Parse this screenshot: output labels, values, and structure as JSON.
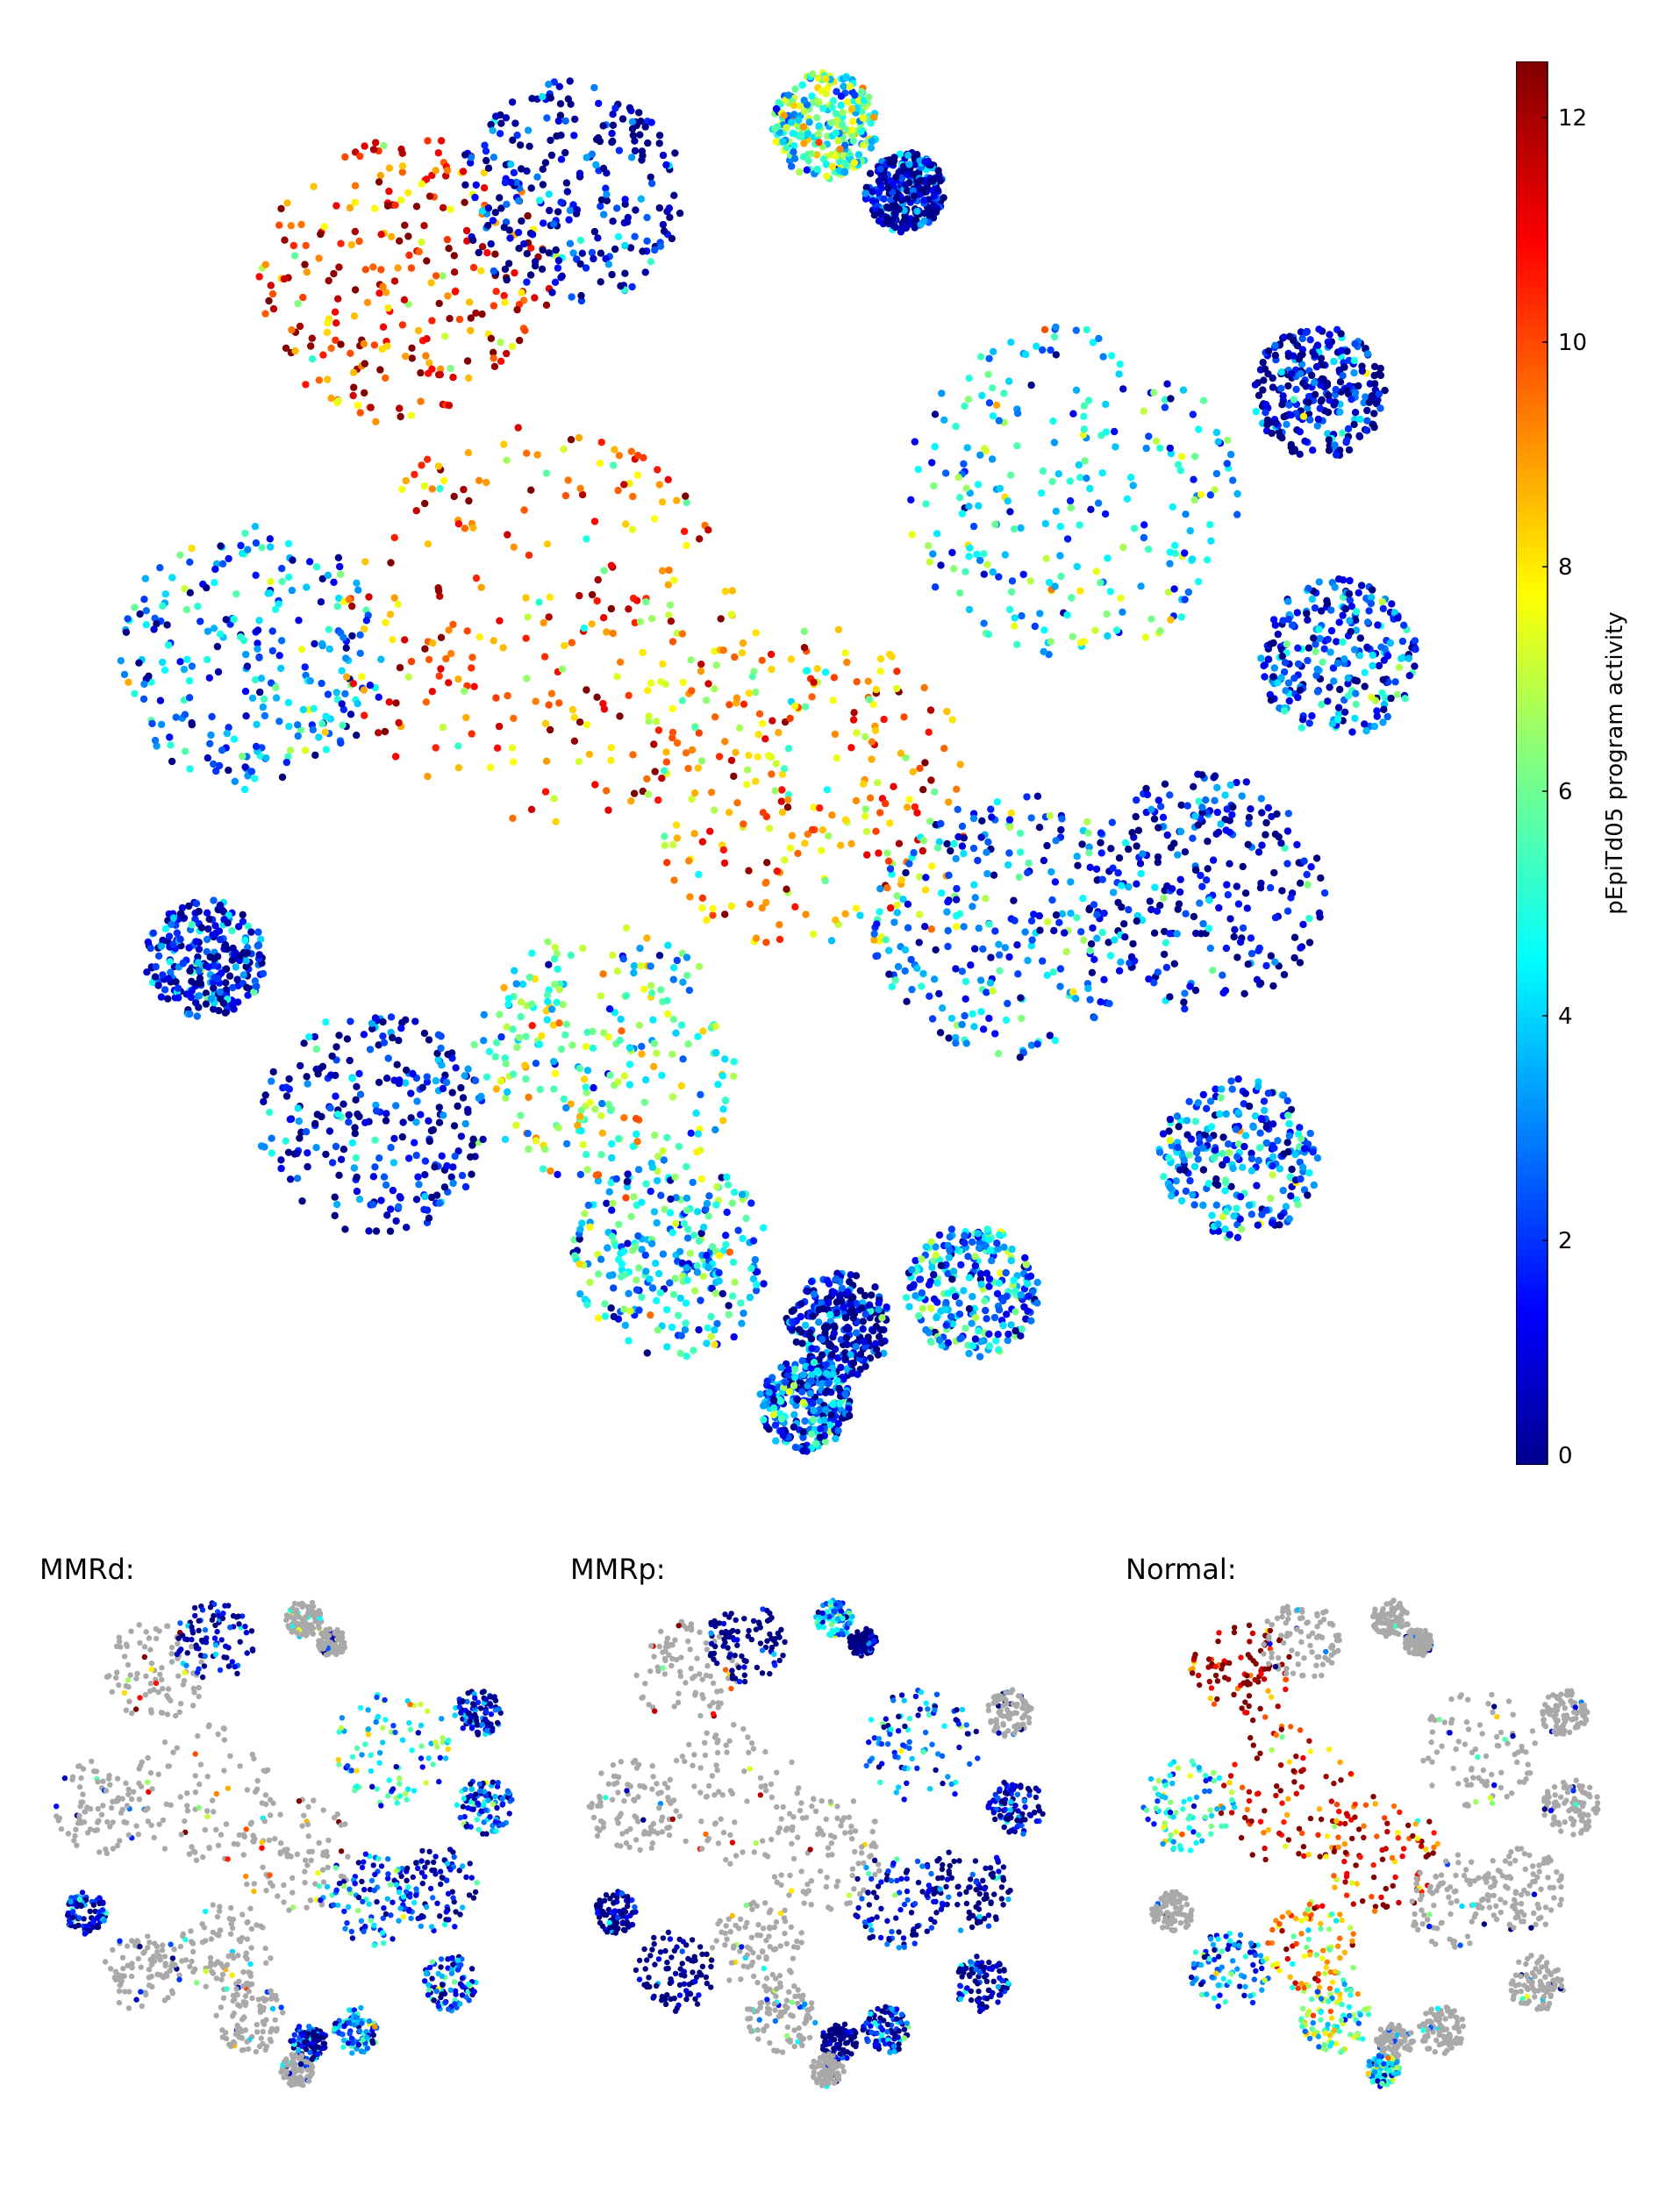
{
  "chart_data": [
    {
      "type": "scatter",
      "panel": "main",
      "title": "",
      "description_colorbar": {
        "label": "pEpiTd05 program activity",
        "range": [
          0,
          12.5
        ],
        "ticks": [
          0,
          2,
          4,
          6,
          8,
          10,
          12
        ],
        "colormap": "jet"
      },
      "clusters": [
        {
          "cx": -0.55,
          "cy": 0.72,
          "r": 0.22,
          "v": 10.5
        },
        {
          "cx": -0.3,
          "cy": 0.85,
          "r": 0.17,
          "v": 0.5
        },
        {
          "cx": 0.08,
          "cy": 0.95,
          "r": 0.08,
          "v": 5.5
        },
        {
          "cx": 0.2,
          "cy": 0.85,
          "r": 0.06,
          "v": 0.6
        },
        {
          "cx": -0.78,
          "cy": 0.15,
          "r": 0.2,
          "v": 3
        },
        {
          "cx": -0.35,
          "cy": 0.2,
          "r": 0.3,
          "v": 9.5
        },
        {
          "cx": 0.05,
          "cy": -0.05,
          "r": 0.25,
          "v": 9
        },
        {
          "cx": 0.45,
          "cy": 0.4,
          "r": 0.25,
          "v": 4.5
        },
        {
          "cx": 0.82,
          "cy": 0.55,
          "r": 0.1,
          "v": 0.8
        },
        {
          "cx": 0.85,
          "cy": 0.15,
          "r": 0.12,
          "v": 2.5
        },
        {
          "cx": 0.65,
          "cy": -0.2,
          "r": 0.18,
          "v": 1
        },
        {
          "cx": 0.35,
          "cy": -0.25,
          "r": 0.2,
          "v": 3
        },
        {
          "cx": -0.85,
          "cy": -0.3,
          "r": 0.09,
          "v": 1.5
        },
        {
          "cx": -0.6,
          "cy": -0.55,
          "r": 0.17,
          "v": 1
        },
        {
          "cx": -0.25,
          "cy": -0.45,
          "r": 0.2,
          "v": 6
        },
        {
          "cx": -0.15,
          "cy": -0.75,
          "r": 0.15,
          "v": 4
        },
        {
          "cx": 0.1,
          "cy": -0.85,
          "r": 0.08,
          "v": 1
        },
        {
          "cx": 0.3,
          "cy": -0.8,
          "r": 0.1,
          "v": 3.5
        },
        {
          "cx": 0.7,
          "cy": -0.6,
          "r": 0.12,
          "v": 2.5
        },
        {
          "cx": 0.05,
          "cy": -0.97,
          "r": 0.07,
          "v": 2.5
        }
      ]
    },
    {
      "type": "scatter",
      "panel": "MMRd",
      "title": "MMRd:"
    },
    {
      "type": "scatter",
      "panel": "MMRp",
      "title": "MMRp:"
    },
    {
      "type": "scatter",
      "panel": "Normal",
      "title": "Normal:"
    }
  ],
  "colorbar": {
    "label": "pEpiTd05 program activity",
    "tick_labels": [
      "0",
      "2",
      "4",
      "6",
      "8",
      "10",
      "12"
    ]
  },
  "panels": {
    "mmrd_title": "MMRd:",
    "mmrp_title": "MMRp:",
    "normal_title": "Normal:"
  },
  "colors": {
    "background_cells": "#a9a9a9"
  }
}
